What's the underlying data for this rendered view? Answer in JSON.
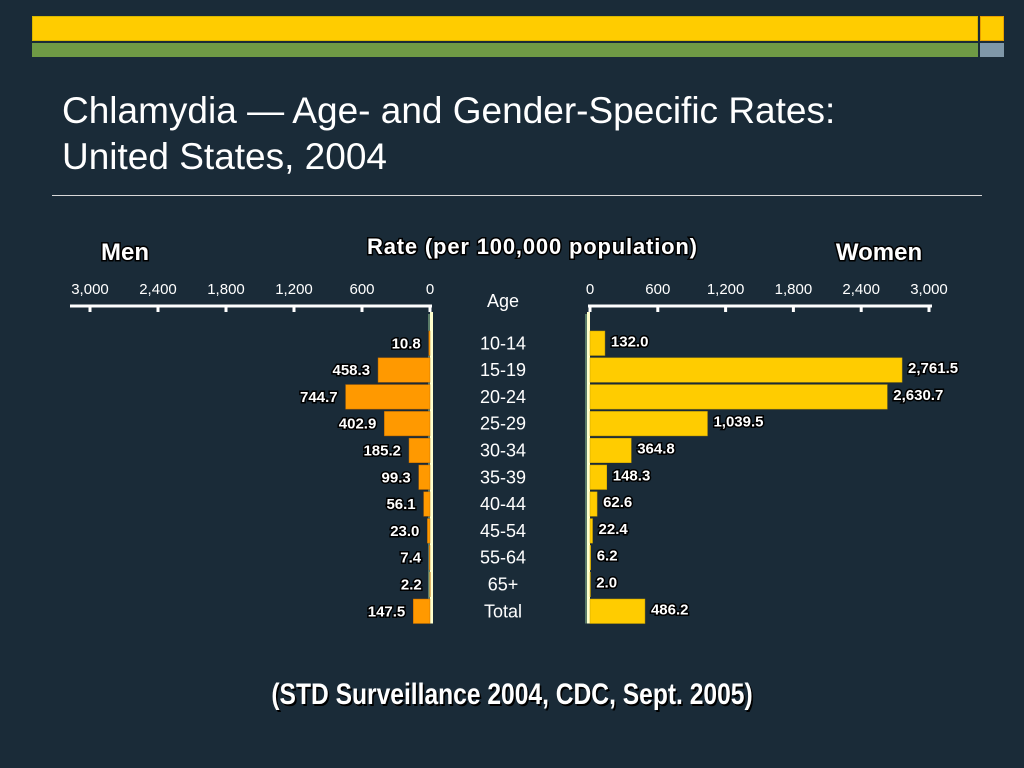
{
  "slide": {
    "title": "Chlamydia — Age- and Gender-Specific Rates:\nUnited States, 2004",
    "footer": "(STD Surveillance 2004, CDC, Sept. 2005)"
  },
  "colors": {
    "background": "#1a2b38",
    "men_bar": "#ff9900",
    "women_bar": "#ffcc00",
    "accent_bar": "#ffcc00",
    "accent_green": "#6f9a45",
    "axis_left_line": "#99cc99",
    "text": "#ffffff"
  },
  "chart_data": {
    "type": "bar",
    "orientation": "horizontal-population-pyramid",
    "title": "Rate (per 100,000 population)",
    "left_label": "Men",
    "right_label": "Women",
    "category_header": "Age",
    "categories": [
      "10-14",
      "15-19",
      "20-24",
      "25-29",
      "30-34",
      "35-39",
      "40-44",
      "45-54",
      "55-64",
      "65+",
      "Total"
    ],
    "series": [
      {
        "name": "Men",
        "values": [
          10.8,
          458.3,
          744.7,
          402.9,
          185.2,
          99.3,
          56.1,
          23.0,
          7.4,
          2.2,
          147.5
        ],
        "labels": [
          "10.8",
          "458.3",
          "744.7",
          "402.9",
          "185.2",
          "99.3",
          "56.1",
          "23.0",
          "7.4",
          "2.2",
          "147.5"
        ]
      },
      {
        "name": "Women",
        "values": [
          132.0,
          2761.5,
          2630.7,
          1039.5,
          364.8,
          148.3,
          62.6,
          22.4,
          6.2,
          2.0,
          486.2
        ],
        "labels": [
          "132.0",
          "2,761.5",
          "2,630.7",
          "1,039.5",
          "364.8",
          "148.3",
          "62.6",
          "22.4",
          "6.2",
          "2.0",
          "486.2"
        ]
      }
    ],
    "xlim": [
      0,
      3000
    ],
    "left_ticks": [
      "3,000",
      "2,400",
      "1,800",
      "1,200",
      "600",
      "0"
    ],
    "right_ticks": [
      "0",
      "600",
      "1,200",
      "1,800",
      "2,400",
      "3,000"
    ],
    "left_tick_values": [
      3000,
      2400,
      1800,
      1200,
      600,
      0
    ],
    "right_tick_values": [
      0,
      600,
      1200,
      1800,
      2400,
      3000
    ],
    "grid": false
  }
}
